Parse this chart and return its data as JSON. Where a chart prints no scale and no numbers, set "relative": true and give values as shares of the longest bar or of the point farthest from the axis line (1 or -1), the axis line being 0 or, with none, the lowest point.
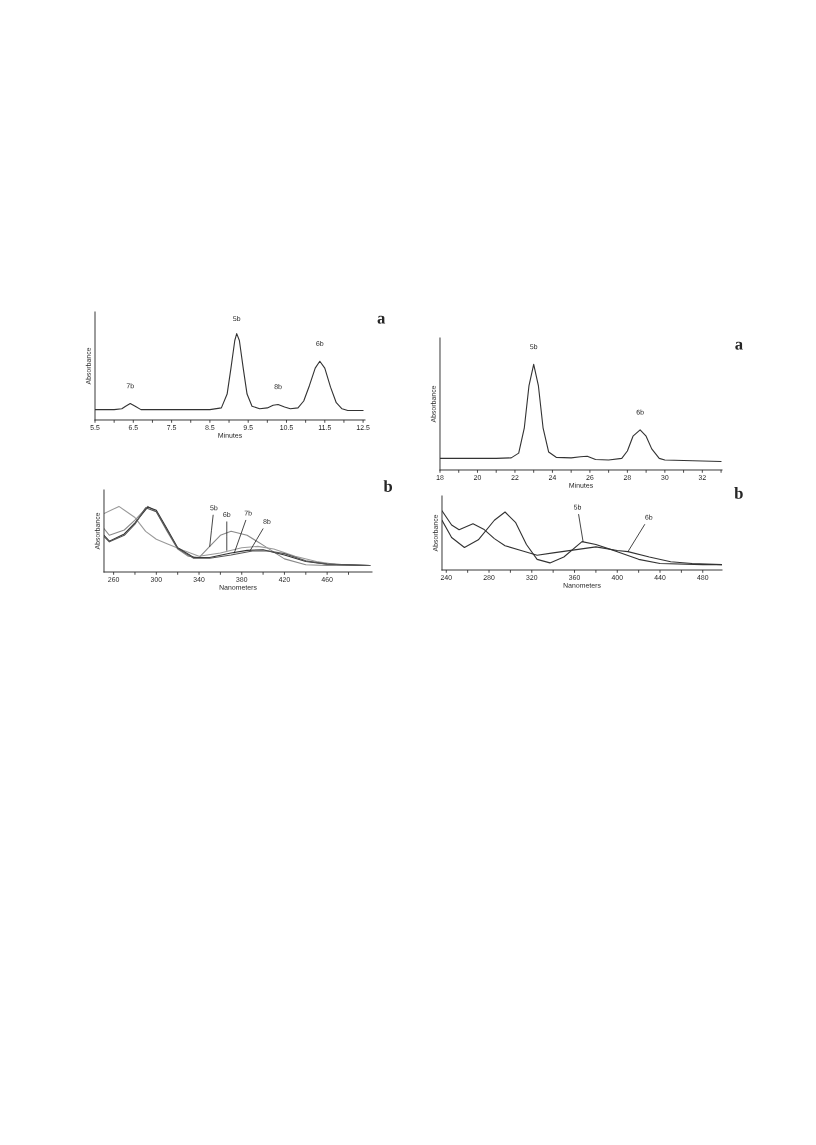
{
  "chart_data": [
    {
      "type": "line",
      "relative": true,
      "xlabel": "Minutes",
      "ylabel": "Absorbance",
      "xlim": [
        5.5,
        12.55
      ],
      "xticks": [
        5.5,
        {
          "value": 6,
          "label": null
        },
        6.5,
        {
          "value": 7,
          "label": null
        },
        7.5,
        {
          "value": 8,
          "label": null
        },
        8.5,
        {
          "value": 9,
          "label": null
        },
        9.5,
        {
          "value": 10,
          "label": null
        },
        10.5,
        {
          "value": 11,
          "label": null
        },
        11.5,
        {
          "value": 12,
          "label": null
        },
        12.5
      ],
      "series": [
        {
          "color": "#333333",
          "x": [
            5.5,
            6.0,
            6.2,
            6.3,
            6.42,
            6.55,
            6.7,
            7.5,
            8.5,
            8.8,
            8.95,
            9.05,
            9.15,
            9.2,
            9.27,
            9.37,
            9.47,
            9.6,
            9.8,
            10.0,
            10.15,
            10.28,
            10.45,
            10.6,
            10.8,
            10.95,
            11.1,
            11.25,
            11.37,
            11.5,
            11.65,
            11.8,
            11.95,
            12.1,
            12.5
          ],
          "values": [
            0.12,
            0.12,
            0.13,
            0.16,
            0.19,
            0.16,
            0.12,
            0.12,
            0.12,
            0.14,
            0.3,
            0.6,
            0.92,
            1.0,
            0.92,
            0.6,
            0.3,
            0.16,
            0.13,
            0.14,
            0.17,
            0.18,
            0.15,
            0.13,
            0.14,
            0.22,
            0.4,
            0.6,
            0.68,
            0.6,
            0.38,
            0.2,
            0.13,
            0.11,
            0.11
          ]
        }
      ],
      "annotations": [
        {
          "text": "7b",
          "x": 6.42,
          "y": 0.19
        },
        {
          "text": "5b",
          "x": 9.2,
          "y": 1.0
        },
        {
          "text": "8b",
          "x": 10.28,
          "y": 0.18
        },
        {
          "text": "6b",
          "x": 11.37,
          "y": 0.68
        },
        "a"
      ]
    },
    {
      "type": "line",
      "relative": true,
      "xlabel": "Minutes",
      "ylabel": "Absorbance",
      "xlim": [
        18,
        33.05
      ],
      "xticks": [
        18,
        {
          "value": 19,
          "label": null
        },
        20,
        {
          "value": 21,
          "label": null
        },
        22,
        {
          "value": 23,
          "label": null
        },
        24,
        {
          "value": 25,
          "label": null
        },
        26,
        {
          "value": 27,
          "label": null
        },
        28,
        {
          "value": 29,
          "label": null
        },
        30,
        {
          "value": 31,
          "label": null
        },
        32,
        {
          "value": 33,
          "label": null
        }
      ],
      "series": [
        {
          "color": "#333333",
          "x": [
            18,
            20,
            21,
            21.8,
            22.2,
            22.5,
            22.75,
            23.0,
            23.25,
            23.5,
            23.8,
            24.2,
            25,
            25.5,
            25.86,
            26.3,
            27,
            27.7,
            28.0,
            28.3,
            28.68,
            29.0,
            29.3,
            29.7,
            30,
            31,
            32,
            33
          ],
          "values": [
            0.11,
            0.11,
            0.11,
            0.115,
            0.16,
            0.4,
            0.8,
            1.0,
            0.8,
            0.4,
            0.17,
            0.12,
            0.115,
            0.125,
            0.13,
            0.1,
            0.095,
            0.11,
            0.18,
            0.32,
            0.38,
            0.32,
            0.2,
            0.11,
            0.095,
            0.09,
            0.085,
            0.08
          ]
        }
      ],
      "annotations": [
        {
          "text": "5b",
          "x": 23.0,
          "y": 1.0
        },
        {
          "text": "6b",
          "x": 28.68,
          "y": 0.38
        },
        "a"
      ]
    },
    {
      "type": "line",
      "relative": true,
      "xlabel": "Nanometers",
      "ylabel": "Absorbance",
      "xlim": [
        251,
        502
      ],
      "xticks": [
        260,
        {
          "value": 280,
          "label": null
        },
        300,
        {
          "value": 320,
          "label": null
        },
        340,
        {
          "value": 360,
          "label": null
        },
        380,
        {
          "value": 400,
          "label": null
        },
        420,
        {
          "value": 440,
          "label": null
        },
        460,
        {
          "value": 480,
          "label": null
        }
      ],
      "series": [
        {
          "color": "#8a8a8a",
          "x": [
            251,
            256,
            270,
            280,
            292,
            300,
            310,
            320,
            330,
            340,
            350,
            360,
            370,
            385,
            400,
            420,
            440,
            460,
            500
          ],
          "values": [
            0.66,
            0.56,
            0.64,
            0.79,
            1.0,
            0.92,
            0.62,
            0.35,
            0.24,
            0.22,
            0.39,
            0.56,
            0.62,
            0.56,
            0.41,
            0.2,
            0.11,
            0.1,
            0.1
          ]
        },
        {
          "color": "#9a9a9a",
          "x": [
            251,
            265,
            280,
            290,
            300,
            310,
            325,
            340,
            360,
            380,
            395,
            410,
            430,
            450,
            470,
            500
          ],
          "values": [
            0.89,
            1.0,
            0.83,
            0.62,
            0.5,
            0.43,
            0.33,
            0.24,
            0.29,
            0.37,
            0.39,
            0.35,
            0.24,
            0.16,
            0.11,
            0.1
          ]
        },
        {
          "color": "#333333",
          "x": [
            251,
            256,
            270,
            280,
            292,
            300,
            310,
            320,
            335,
            350,
            370,
            385,
            400,
            420,
            440,
            460,
            500
          ],
          "values": [
            0.56,
            0.47,
            0.58,
            0.75,
            0.99,
            0.94,
            0.66,
            0.37,
            0.22,
            0.22,
            0.29,
            0.33,
            0.34,
            0.26,
            0.16,
            0.12,
            0.1
          ]
        },
        {
          "color": "#555555",
          "x": [
            251,
            256,
            270,
            280,
            290,
            300,
            310,
            320,
            335,
            350,
            370,
            390,
            405,
            420,
            440,
            460,
            500
          ],
          "values": [
            0.54,
            0.46,
            0.56,
            0.73,
            0.98,
            0.92,
            0.64,
            0.36,
            0.21,
            0.21,
            0.26,
            0.32,
            0.32,
            0.28,
            0.17,
            0.12,
            0.1
          ]
        }
      ],
      "annotations": [
        {
          "text": "5b",
          "x": 350,
          "y": 0.39
        },
        {
          "text": "6b",
          "x": 366,
          "y": 0.33
        },
        {
          "text": "7b",
          "x": 373,
          "y": 0.29
        },
        {
          "text": "8b",
          "x": 388,
          "y": 0.33
        },
        "b"
      ]
    },
    {
      "type": "line",
      "relative": true,
      "xlabel": "Nanometers",
      "ylabel": "Absorbance",
      "xlim": [
        236,
        498
      ],
      "xticks": [
        240,
        {
          "value": 260,
          "label": null
        },
        280,
        {
          "value": 300,
          "label": null
        },
        320,
        {
          "value": 340,
          "label": null
        },
        360,
        {
          "value": 380,
          "label": null
        },
        400,
        {
          "value": 420,
          "label": null
        },
        440,
        {
          "value": 460,
          "label": null
        },
        480
      ],
      "series": [
        {
          "color": "#333333",
          "x": [
            236,
            245,
            257,
            270,
            285,
            295,
            305,
            315,
            325,
            337,
            350,
            367,
            380,
            400,
            420,
            440,
            480,
            498
          ],
          "values": [
            0.84,
            0.55,
            0.38,
            0.51,
            0.84,
            0.98,
            0.8,
            0.43,
            0.18,
            0.12,
            0.22,
            0.48,
            0.43,
            0.31,
            0.18,
            0.11,
            0.09,
            0.09
          ]
        },
        {
          "color": "#333333",
          "x": [
            236,
            245,
            252,
            265,
            275,
            285,
            295,
            310,
            325,
            340,
            360,
            380,
            400,
            410,
            430,
            450,
            470,
            498
          ],
          "values": [
            1.0,
            0.76,
            0.68,
            0.78,
            0.69,
            0.53,
            0.41,
            0.33,
            0.25,
            0.29,
            0.34,
            0.39,
            0.33,
            0.31,
            0.22,
            0.14,
            0.11,
            0.09
          ]
        }
      ],
      "annotations": [
        {
          "text": "5b",
          "x": 368,
          "y": 0.48
        },
        {
          "text": "6b",
          "x": 410,
          "y": 0.31
        },
        "b"
      ]
    }
  ]
}
